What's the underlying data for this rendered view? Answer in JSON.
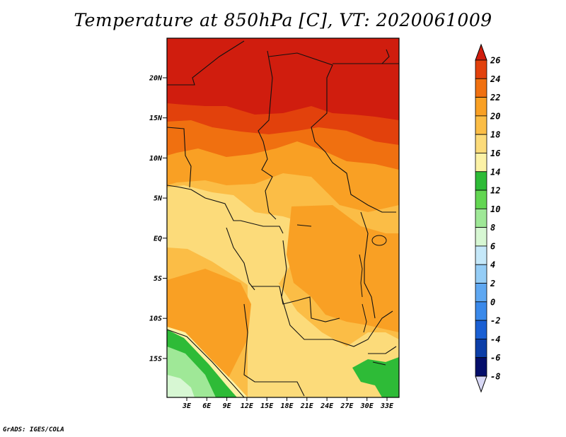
{
  "title": "Temperature at 850hPa [C], VT: 2020061009",
  "credit": "GrADS: IGES/COLA",
  "map": {
    "lon_labels": [
      "3E",
      "6E",
      "9E",
      "12E",
      "15E",
      "18E",
      "21E",
      "24E",
      "27E",
      "30E",
      "33E"
    ],
    "lat_labels": [
      "20N",
      "15N",
      "10N",
      "5N",
      "EQ",
      "5S",
      "10S",
      "15S"
    ]
  },
  "colorbar": {
    "levels": [
      "26",
      "24",
      "22",
      "20",
      "18",
      "16",
      "14",
      "12",
      "10",
      "8",
      "6",
      "4",
      "2",
      "0",
      "-2",
      "-4",
      "-6",
      "-8"
    ],
    "colors": [
      "#d01d0e",
      "#e2410c",
      "#f07010",
      "#f9a024",
      "#fbbd46",
      "#fcdb7a",
      "#fcf2a6",
      "#2ebb37",
      "#63d652",
      "#9fe897",
      "#d7f7d3",
      "#c5e8f9",
      "#95cdf6",
      "#5fa8f2",
      "#3a89ea",
      "#1a5fd3",
      "#0c3ea8",
      "#040e6a",
      "#d8d8f5"
    ]
  }
}
